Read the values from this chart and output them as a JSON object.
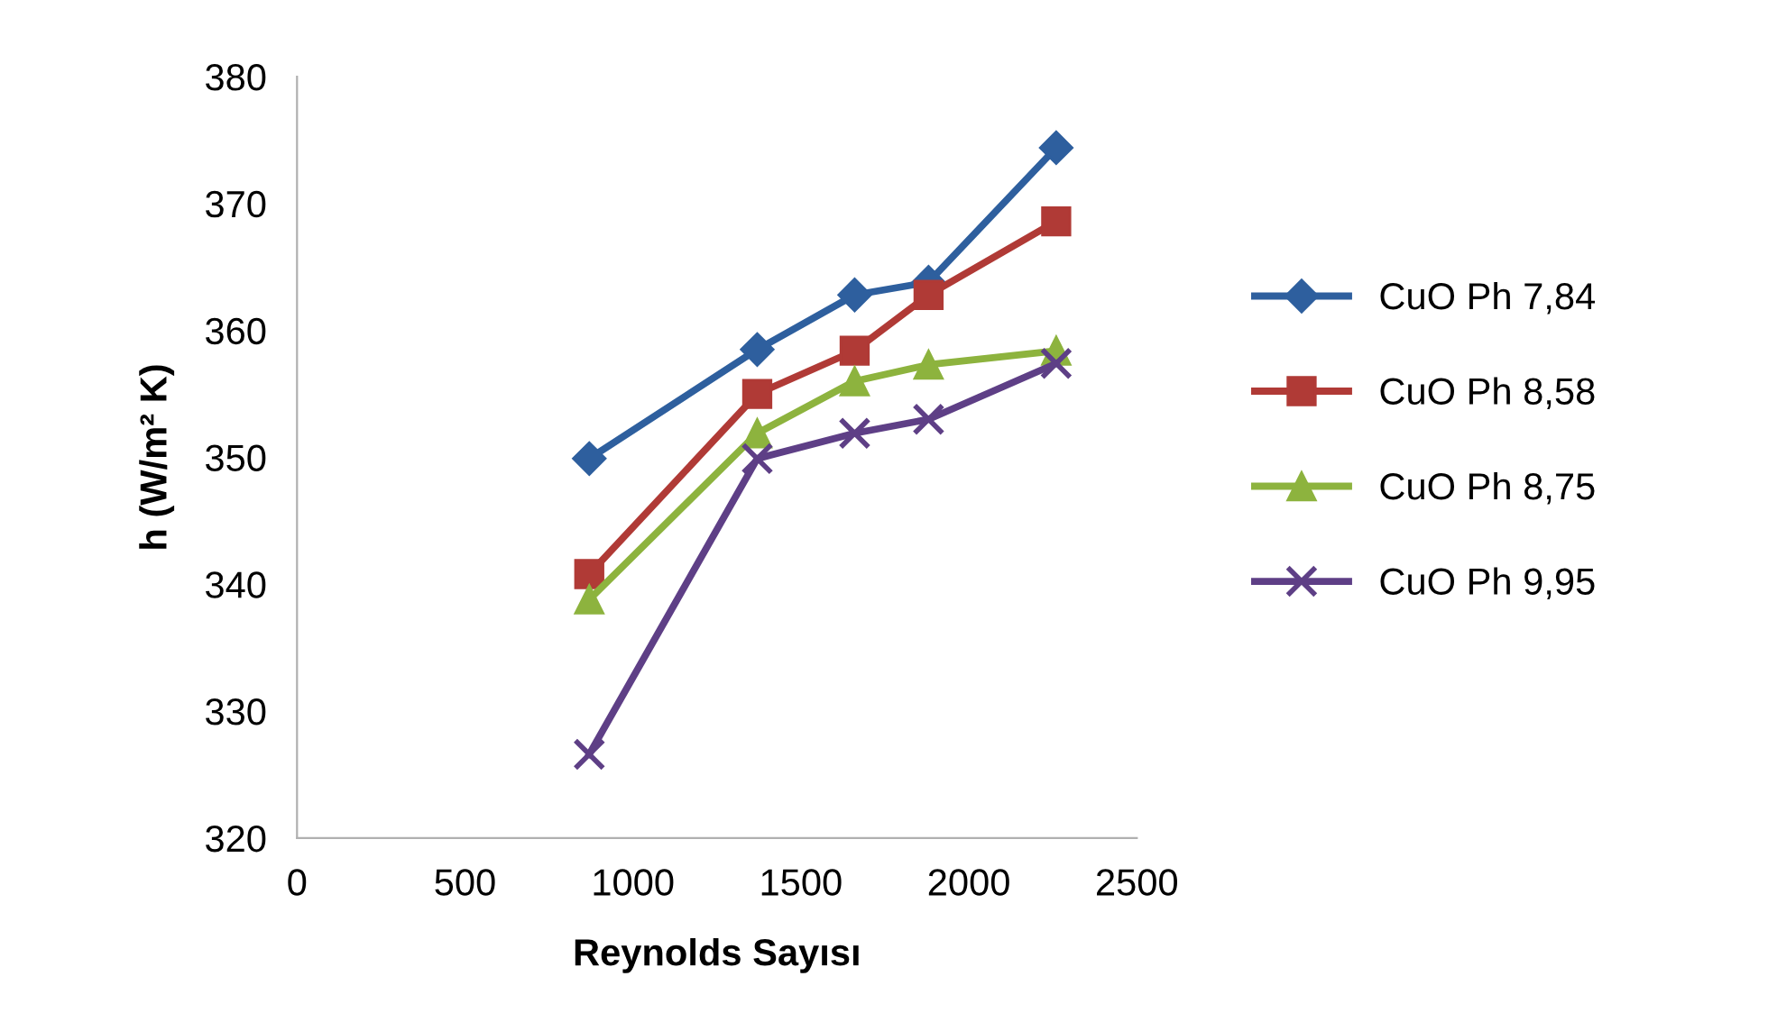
{
  "chart_data": {
    "type": "line",
    "xlabel": "Reynolds Sayısı",
    "ylabel": "h (W/m² K)",
    "x": [
      870,
      1370,
      1660,
      1880,
      2260
    ],
    "series": [
      {
        "name": "CuO Ph 7,84",
        "color": "#2e5f9e",
        "marker": "diamond",
        "values": [
          349.9,
          358.5,
          362.8,
          363.8,
          374.4
        ]
      },
      {
        "name": "CuO Ph 8,58",
        "color": "#b03a36",
        "marker": "square",
        "values": [
          340.8,
          355.0,
          358.4,
          362.8,
          368.6
        ]
      },
      {
        "name": "CuO Ph 8,75",
        "color": "#8db33e",
        "marker": "triangle",
        "values": [
          338.8,
          351.9,
          356.0,
          357.3,
          358.4
        ]
      },
      {
        "name": "CuO Ph 9,95",
        "color": "#5e3f86",
        "marker": "cross",
        "values": [
          326.6,
          349.9,
          351.9,
          353.0,
          357.4
        ]
      }
    ],
    "xlim": [
      0,
      2500
    ],
    "xticks": [
      0,
      500,
      1000,
      1500,
      2000,
      2500
    ],
    "ylim": [
      320,
      380
    ],
    "yticks": [
      320,
      330,
      340,
      350,
      360,
      370,
      380
    ],
    "grid": false,
    "legend": "right",
    "line_style": "solid"
  }
}
